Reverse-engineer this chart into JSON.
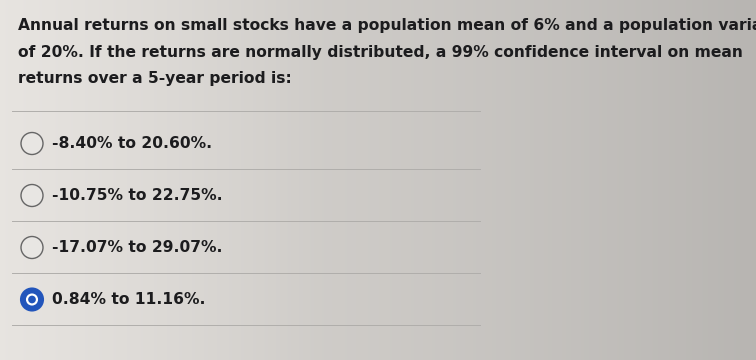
{
  "question_text_line1": "Annual returns on small stocks have a population mean of 6% and a population variance",
  "question_text_line2": "of 20%. If the returns are normally distributed, a 99% confidence interval on mean",
  "question_text_line3": "returns over a 5-year period is:",
  "options": [
    "-8.40% to 20.60%.",
    "-10.75% to 22.75%.",
    "-17.07% to 29.07%.",
    "0.84% to 11.16%."
  ],
  "selected_index": 3,
  "bg_color_left": "#e8e6e3",
  "bg_color_right": "#b8b5b0",
  "text_color": "#1c1c1e",
  "question_fontsize": 11.2,
  "option_fontsize": 11.2,
  "circle_unselected_face": "#e8e6e3",
  "circle_selected_color": "#2255bb",
  "circle_edge_color": "#666666",
  "divider_color": "#b0aeab"
}
